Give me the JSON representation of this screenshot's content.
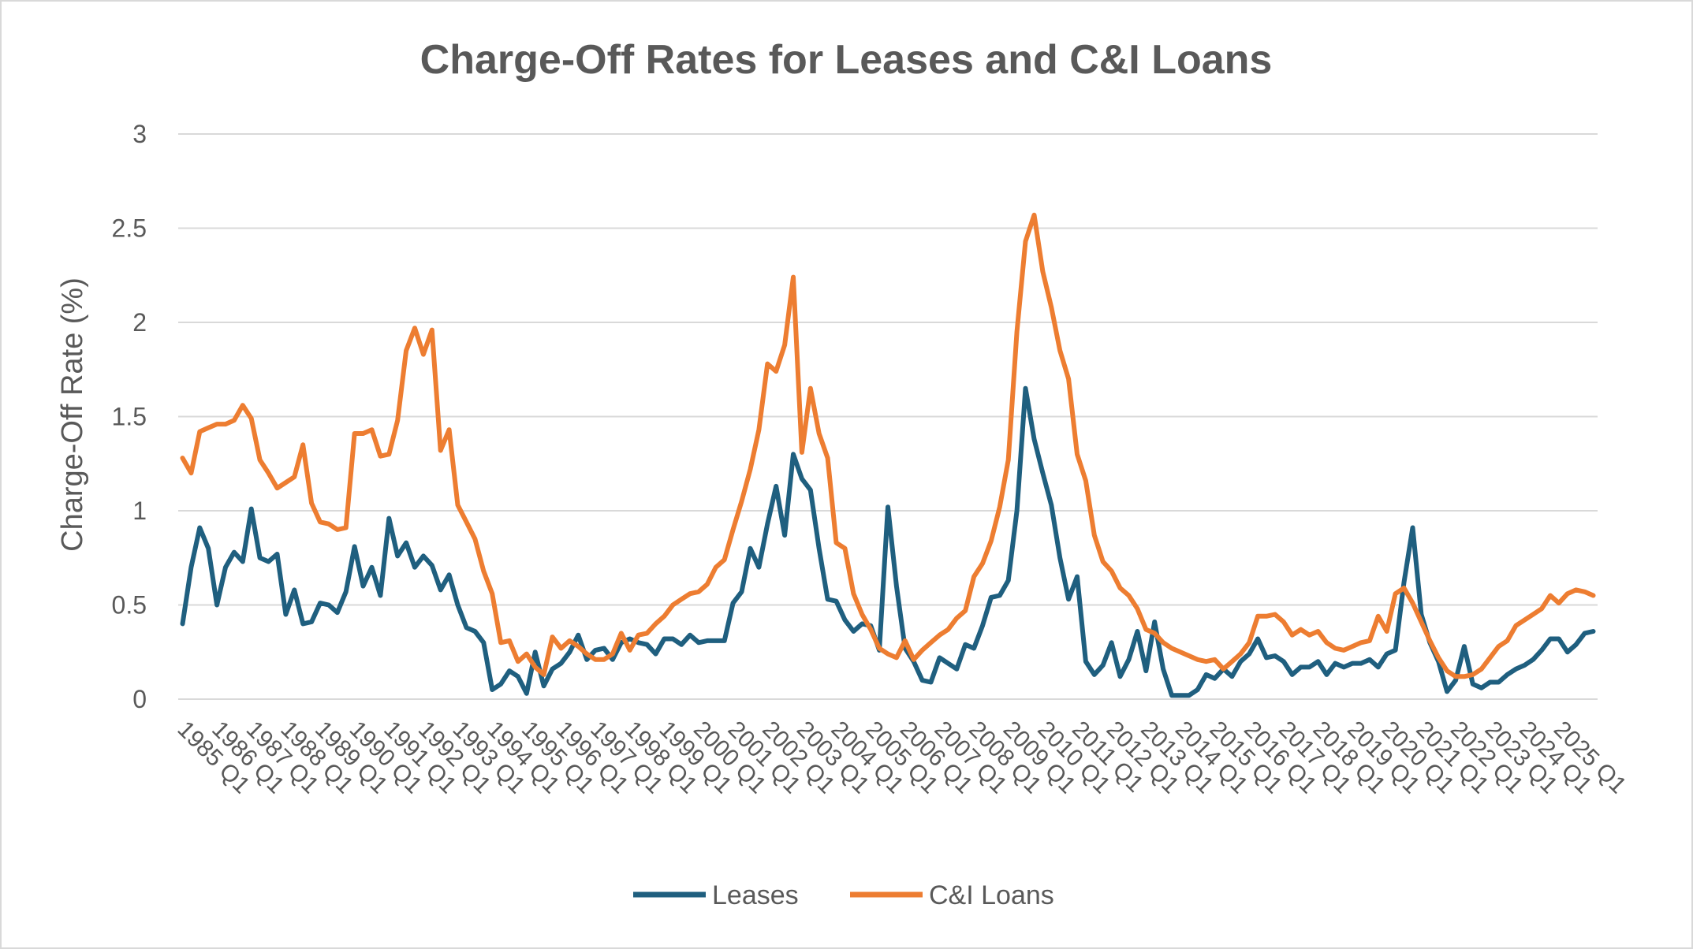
{
  "chart_data": {
    "type": "line",
    "title": "Charge-Off Rates for  Leases and C&I Loans",
    "ylabel": "Charge-Off Rate (%)",
    "xlabel": "",
    "ylim": [
      0,
      3
    ],
    "yticks": [
      "0",
      "0.5",
      "1",
      "1.5",
      "2",
      "2.5",
      "3"
    ],
    "grid": true,
    "legend": "bottom",
    "x_start": "1985 Q1",
    "xtick_labels": [
      "1985 Q1",
      "1986 Q1",
      "1987 Q1",
      "1988 Q1",
      "1989 Q1",
      "1990 Q1",
      "1991 Q1",
      "1992 Q1",
      "1993 Q1",
      "1994 Q1",
      "1995 Q1",
      "1996 Q1",
      "1997 Q1",
      "1998 Q1",
      "1999 Q1",
      "2000 Q1",
      "2001 Q1",
      "2002 Q1",
      "2003 Q1",
      "2004 Q1",
      "2005 Q1",
      "2006 Q1",
      "2007 Q1",
      "2008 Q1",
      "2009 Q1",
      "2010 Q1",
      "2011 Q1",
      "2012 Q1",
      "2013 Q1",
      "2014 Q1",
      "2015 Q1",
      "2016 Q1",
      "2017 Q1",
      "2018 Q1",
      "2019 Q1",
      "2020 Q1",
      "2021 Q1",
      "2022 Q1",
      "2023 Q1",
      "2024 Q1",
      "2025 Q1"
    ],
    "series": [
      {
        "name": "Leases",
        "color": "#1f5f7f",
        "values": [
          0.4,
          0.7,
          0.91,
          0.8,
          0.5,
          0.7,
          0.78,
          0.73,
          1.01,
          0.75,
          0.73,
          0.77,
          0.45,
          0.58,
          0.4,
          0.41,
          0.51,
          0.5,
          0.46,
          0.57,
          0.81,
          0.6,
          0.7,
          0.55,
          0.96,
          0.76,
          0.83,
          0.7,
          0.76,
          0.71,
          0.58,
          0.66,
          0.5,
          0.38,
          0.36,
          0.3,
          0.05,
          0.08,
          0.15,
          0.12,
          0.03,
          0.25,
          0.07,
          0.16,
          0.19,
          0.25,
          0.34,
          0.21,
          0.26,
          0.27,
          0.21,
          0.3,
          0.32,
          0.3,
          0.29,
          0.24,
          0.32,
          0.32,
          0.29,
          0.34,
          0.3,
          0.31,
          0.31,
          0.31,
          0.51,
          0.57,
          0.8,
          0.7,
          0.93,
          1.13,
          0.87,
          1.3,
          1.17,
          1.11,
          0.8,
          0.53,
          0.52,
          0.42,
          0.36,
          0.4,
          0.39,
          0.26,
          1.02,
          0.6,
          0.27,
          0.2,
          0.1,
          0.09,
          0.22,
          0.19,
          0.16,
          0.29,
          0.27,
          0.39,
          0.54,
          0.55,
          0.63,
          1.0,
          1.65,
          1.38,
          1.2,
          1.03,
          0.75,
          0.53,
          0.65,
          0.2,
          0.13,
          0.18,
          0.3,
          0.12,
          0.21,
          0.36,
          0.15,
          0.41,
          0.16,
          0.02,
          0.02,
          0.02,
          0.05,
          0.13,
          0.11,
          0.16,
          0.12,
          0.2,
          0.24,
          0.32,
          0.22,
          0.23,
          0.2,
          0.13,
          0.17,
          0.17,
          0.2,
          0.13,
          0.19,
          0.17,
          0.19,
          0.19,
          0.21,
          0.17,
          0.24,
          0.26,
          0.62,
          0.91,
          0.45,
          0.3,
          0.2,
          0.04,
          0.1,
          0.28,
          0.08,
          0.06,
          0.09,
          0.09,
          0.13,
          0.16,
          0.18,
          0.21,
          0.26,
          0.32,
          0.32,
          0.25,
          0.29,
          0.35,
          0.36
        ]
      },
      {
        "name": "C&I Loans",
        "color": "#ed7d31",
        "values": [
          1.28,
          1.2,
          1.42,
          1.44,
          1.46,
          1.46,
          1.48,
          1.56,
          1.49,
          1.27,
          1.2,
          1.12,
          1.15,
          1.18,
          1.35,
          1.04,
          0.94,
          0.93,
          0.9,
          0.91,
          1.41,
          1.41,
          1.43,
          1.29,
          1.3,
          1.48,
          1.85,
          1.97,
          1.83,
          1.96,
          1.32,
          1.43,
          1.03,
          0.94,
          0.85,
          0.68,
          0.56,
          0.3,
          0.31,
          0.2,
          0.24,
          0.17,
          0.13,
          0.33,
          0.27,
          0.31,
          0.28,
          0.24,
          0.21,
          0.21,
          0.24,
          0.35,
          0.26,
          0.34,
          0.35,
          0.4,
          0.44,
          0.5,
          0.53,
          0.56,
          0.57,
          0.61,
          0.7,
          0.74,
          0.9,
          1.05,
          1.22,
          1.43,
          1.78,
          1.74,
          1.88,
          2.24,
          1.31,
          1.65,
          1.41,
          1.28,
          0.83,
          0.8,
          0.56,
          0.45,
          0.37,
          0.27,
          0.24,
          0.22,
          0.31,
          0.21,
          0.26,
          0.3,
          0.34,
          0.37,
          0.43,
          0.47,
          0.65,
          0.72,
          0.84,
          1.02,
          1.27,
          1.95,
          2.43,
          2.57,
          2.27,
          2.08,
          1.85,
          1.7,
          1.3,
          1.16,
          0.87,
          0.73,
          0.68,
          0.59,
          0.55,
          0.48,
          0.37,
          0.35,
          0.3,
          0.27,
          0.25,
          0.23,
          0.21,
          0.2,
          0.21,
          0.16,
          0.2,
          0.24,
          0.3,
          0.44,
          0.44,
          0.45,
          0.41,
          0.34,
          0.37,
          0.34,
          0.36,
          0.3,
          0.27,
          0.26,
          0.28,
          0.3,
          0.31,
          0.44,
          0.36,
          0.56,
          0.59,
          0.51,
          0.41,
          0.31,
          0.22,
          0.15,
          0.12,
          0.12,
          0.13,
          0.16,
          0.22,
          0.28,
          0.31,
          0.39,
          0.42,
          0.45,
          0.48,
          0.55,
          0.51,
          0.56,
          0.58,
          0.57,
          0.55
        ]
      }
    ]
  }
}
